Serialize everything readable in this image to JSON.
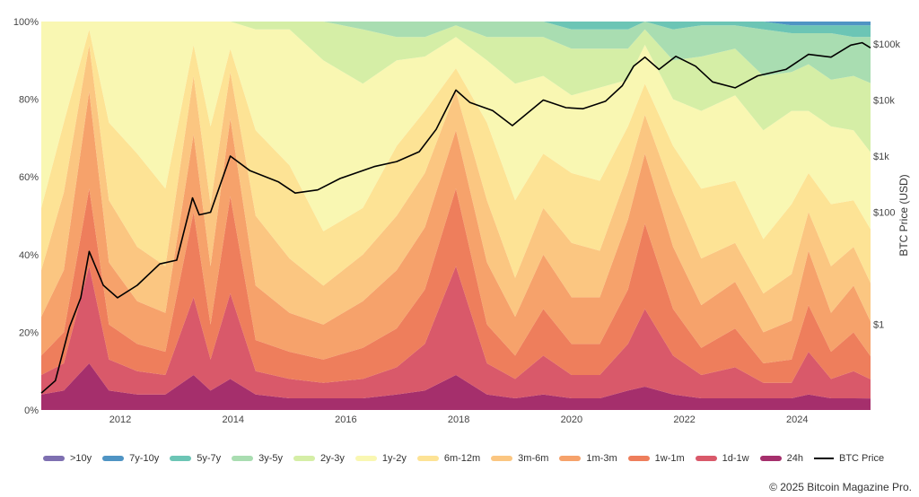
{
  "chart_data": {
    "type": "area",
    "stacking": "percent",
    "x_ticks": [
      "2012",
      "2014",
      "2016",
      "2018",
      "2020",
      "2022",
      "2024"
    ],
    "y_ticks_left": [
      "100%",
      "80%",
      "60%",
      "40%",
      "20%",
      "0%"
    ],
    "y_ticks_right": [
      "$100k",
      "$10k",
      "$1k",
      "$100",
      "$1"
    ],
    "ylabel_right": "BTC Price (USD)",
    "x_range": [
      2010.6,
      2025.3
    ],
    "y_range": [
      0,
      100
    ],
    "y_right_scale": "log",
    "grid": false,
    "legend_position": "bottom",
    "x": [
      2010.6,
      2011.0,
      2011.45,
      2011.8,
      2012.3,
      2012.8,
      2013.3,
      2013.6,
      2013.95,
      2014.4,
      2015.0,
      2015.6,
      2016.3,
      2016.9,
      2017.4,
      2017.95,
      2018.5,
      2019.0,
      2019.5,
      2020.0,
      2020.5,
      2021.0,
      2021.3,
      2021.8,
      2022.3,
      2022.9,
      2023.4,
      2023.9,
      2024.2,
      2024.6,
      2025.0,
      2025.3
    ],
    "series": [
      {
        "name": "24h",
        "color": "#a52f6c",
        "values": [
          4,
          5,
          12,
          5,
          4,
          4,
          9,
          5,
          8,
          4,
          3,
          3,
          3,
          4,
          5,
          9,
          4,
          3,
          4,
          3,
          3,
          5,
          6,
          4,
          3,
          3,
          3,
          3,
          4,
          3,
          3,
          3
        ]
      },
      {
        "name": "1d-1w",
        "color": "#d9596a",
        "values": [
          5,
          7,
          25,
          8,
          6,
          5,
          20,
          8,
          22,
          6,
          5,
          4,
          5,
          7,
          12,
          28,
          8,
          5,
          10,
          6,
          6,
          12,
          20,
          10,
          6,
          8,
          4,
          4,
          11,
          5,
          7,
          5
        ]
      },
      {
        "name": "1w-1m",
        "color": "#ee7e5c",
        "values": [
          5,
          8,
          20,
          9,
          7,
          6,
          22,
          9,
          25,
          8,
          7,
          6,
          8,
          10,
          14,
          20,
          10,
          6,
          12,
          8,
          8,
          14,
          22,
          12,
          7,
          10,
          5,
          6,
          12,
          7,
          10,
          6
        ]
      },
      {
        "name": "1m-3m",
        "color": "#f6a26b",
        "values": [
          10,
          16,
          25,
          16,
          11,
          10,
          20,
          15,
          20,
          14,
          10,
          9,
          12,
          15,
          16,
          15,
          16,
          10,
          14,
          12,
          12,
          18,
          18,
          16,
          11,
          12,
          8,
          10,
          14,
          10,
          12,
          9
        ]
      },
      {
        "name": "3m-6m",
        "color": "#fbc681",
        "values": [
          12,
          20,
          12,
          16,
          14,
          12,
          15,
          16,
          12,
          18,
          14,
          10,
          12,
          14,
          14,
          10,
          16,
          10,
          12,
          14,
          12,
          12,
          10,
          14,
          12,
          10,
          10,
          12,
          10,
          12,
          10,
          10
        ]
      },
      {
        "name": "6m-12m",
        "color": "#fde395",
        "values": [
          16,
          18,
          4,
          20,
          24,
          20,
          8,
          20,
          6,
          22,
          24,
          14,
          12,
          18,
          16,
          6,
          20,
          20,
          14,
          18,
          18,
          12,
          8,
          12,
          18,
          16,
          14,
          18,
          10,
          16,
          12,
          14
        ]
      },
      {
        "name": "1y-2y",
        "color": "#f9f7b2",
        "values": [
          48,
          26,
          2,
          26,
          34,
          43,
          6,
          27,
          7,
          26,
          35,
          44,
          32,
          22,
          14,
          8,
          16,
          30,
          20,
          20,
          24,
          12,
          10,
          12,
          20,
          22,
          28,
          24,
          16,
          20,
          18,
          20
        ]
      },
      {
        "name": "2y-3y",
        "color": "#d5eea6",
        "values": [
          0,
          0,
          0,
          0,
          0,
          0,
          0,
          0,
          0,
          2,
          2,
          10,
          14,
          6,
          5,
          3,
          6,
          12,
          10,
          12,
          10,
          8,
          4,
          10,
          14,
          12,
          14,
          10,
          12,
          12,
          14,
          18
        ]
      },
      {
        "name": "3y-5y",
        "color": "#a9ddb1",
        "values": [
          0,
          0,
          0,
          0,
          0,
          0,
          0,
          0,
          0,
          0,
          0,
          0,
          2,
          4,
          4,
          1,
          4,
          4,
          4,
          5,
          5,
          5,
          2,
          8,
          8,
          6,
          12,
          10,
          8,
          12,
          10,
          12
        ]
      },
      {
        "name": "5y-7y",
        "color": "#6cc5b5",
        "values": [
          0,
          0,
          0,
          0,
          0,
          0,
          0,
          0,
          0,
          0,
          0,
          0,
          0,
          0,
          0,
          0,
          0,
          0,
          0,
          2,
          2,
          2,
          0,
          2,
          1,
          1,
          2,
          2,
          2,
          2,
          3,
          3
        ]
      },
      {
        "name": "7y-10y",
        "color": "#4f94c4",
        "values": [
          0,
          0,
          0,
          0,
          0,
          0,
          0,
          0,
          0,
          0,
          0,
          0,
          0,
          0,
          0,
          0,
          0,
          0,
          0,
          0,
          0,
          0,
          0,
          0,
          0,
          0,
          0,
          1,
          1,
          1,
          1,
          1
        ]
      },
      {
        "name": ">10y",
        "color": "#7e70b1",
        "values": [
          0,
          0,
          0,
          0,
          0,
          0,
          0,
          0,
          0,
          0,
          0,
          0,
          0,
          0,
          0,
          0,
          0,
          0,
          0,
          0,
          0,
          0,
          0,
          0,
          0,
          0,
          0,
          0,
          0,
          0,
          0,
          0
        ]
      }
    ],
    "price_series": {
      "name": "BTC Price",
      "color": "#000000",
      "x": [
        2010.6,
        2010.85,
        2011.1,
        2011.3,
        2011.45,
        2011.7,
        2011.95,
        2012.3,
        2012.7,
        2013.0,
        2013.28,
        2013.4,
        2013.6,
        2013.95,
        2014.3,
        2014.8,
        2015.1,
        2015.5,
        2015.9,
        2016.5,
        2016.9,
        2017.3,
        2017.6,
        2017.95,
        2018.2,
        2018.6,
        2018.95,
        2019.5,
        2019.9,
        2020.2,
        2020.6,
        2020.9,
        2021.1,
        2021.3,
        2021.55,
        2021.85,
        2022.2,
        2022.5,
        2022.9,
        2023.3,
        2023.8,
        2024.2,
        2024.6,
        2024.95,
        2025.15,
        2025.3
      ],
      "y": [
        0.06,
        0.1,
        0.9,
        3,
        20,
        5,
        3,
        5,
        12,
        14,
        180,
        90,
        100,
        1000,
        550,
        350,
        220,
        250,
        400,
        650,
        800,
        1200,
        3000,
        15000,
        9000,
        6500,
        3500,
        10000,
        7300,
        7000,
        9500,
        18000,
        40000,
        58000,
        35000,
        60000,
        40000,
        21000,
        16500,
        27000,
        35000,
        65000,
        58000,
        95000,
        105000,
        85000
      ]
    }
  },
  "legend": [
    {
      "label": ">10y",
      "color": "#7e70b1"
    },
    {
      "label": "7y-10y",
      "color": "#4f94c4"
    },
    {
      "label": "5y-7y",
      "color": "#6cc5b5"
    },
    {
      "label": "3y-5y",
      "color": "#a9ddb1"
    },
    {
      "label": "2y-3y",
      "color": "#d5eea6"
    },
    {
      "label": "1y-2y",
      "color": "#f9f7b2"
    },
    {
      "label": "6m-12m",
      "color": "#fde395"
    },
    {
      "label": "3m-6m",
      "color": "#fbc681"
    },
    {
      "label": "1m-3m",
      "color": "#f6a26b"
    },
    {
      "label": "1w-1m",
      "color": "#ee7e5c"
    },
    {
      "label": "1d-1w",
      "color": "#d9596a"
    },
    {
      "label": "24h",
      "color": "#a52f6c"
    }
  ],
  "legend_price_label": "BTC Price",
  "footer": {
    "copyright": "© 2025 Bitcoin Magazine Pro."
  }
}
